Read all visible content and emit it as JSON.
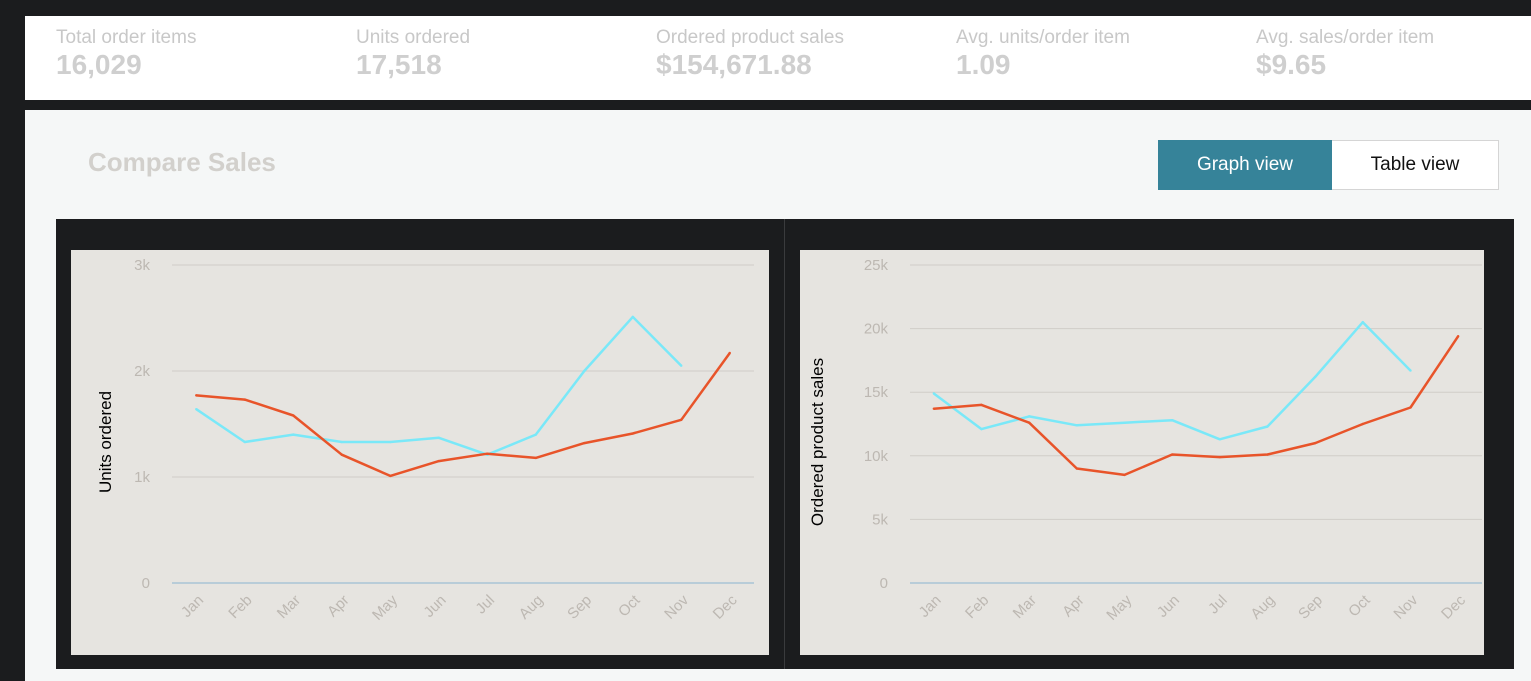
{
  "metrics": [
    {
      "label": "Total order items",
      "value": "16,029"
    },
    {
      "label": "Units ordered",
      "value": "17,518"
    },
    {
      "label": "Ordered product sales",
      "value": "$154,671.88"
    },
    {
      "label": "Avg. units/order item",
      "value": "1.09"
    },
    {
      "label": "Avg. sales/order item",
      "value": "$9.65"
    }
  ],
  "section": {
    "title": "Compare Sales",
    "graph_view_label": "Graph view",
    "table_view_label": "Table view"
  },
  "colors": {
    "series_cyan": "#7ae8f8",
    "series_orange": "#e8542a",
    "plot_bg": "#e6e4e0",
    "toggle_active": "#368399"
  },
  "chart_data": [
    {
      "type": "line",
      "title": "",
      "xlabel": "",
      "ylabel": "Units ordered",
      "categories": [
        "Jan",
        "Feb",
        "Mar",
        "Apr",
        "May",
        "Jun",
        "Jul",
        "Aug",
        "Sep",
        "Oct",
        "Nov",
        "Dec"
      ],
      "ylim": [
        0,
        3000
      ],
      "yticks": [
        0,
        1000,
        2000,
        3000
      ],
      "ytick_labels": [
        "0",
        "1k",
        "2k",
        "3k"
      ],
      "grid": true,
      "series": [
        {
          "name": "series-cyan",
          "color": "#7ae8f8",
          "values": [
            1640,
            1330,
            1400,
            1330,
            1330,
            1370,
            1210,
            1400,
            2000,
            2510,
            2050,
            null
          ]
        },
        {
          "name": "series-orange",
          "color": "#e8542a",
          "values": [
            1770,
            1730,
            1580,
            1210,
            1010,
            1150,
            1220,
            1180,
            1320,
            1410,
            1540,
            2170
          ]
        }
      ]
    },
    {
      "type": "line",
      "title": "",
      "xlabel": "",
      "ylabel": "Ordered product sales",
      "categories": [
        "Jan",
        "Feb",
        "Mar",
        "Apr",
        "May",
        "Jun",
        "Jul",
        "Aug",
        "Sep",
        "Oct",
        "Nov",
        "Dec"
      ],
      "ylim": [
        0,
        25000
      ],
      "yticks": [
        0,
        5000,
        10000,
        15000,
        20000,
        25000
      ],
      "ytick_labels": [
        "0",
        "5k",
        "10k",
        "15k",
        "20k",
        "25k"
      ],
      "grid": true,
      "series": [
        {
          "name": "series-cyan",
          "color": "#7ae8f8",
          "values": [
            14900,
            12100,
            13100,
            12400,
            12600,
            12800,
            11300,
            12300,
            16200,
            20500,
            16700,
            null
          ]
        },
        {
          "name": "series-orange",
          "color": "#e8542a",
          "values": [
            13700,
            14000,
            12600,
            9000,
            8500,
            10100,
            9900,
            10100,
            11000,
            12500,
            13800,
            19400
          ]
        }
      ]
    }
  ]
}
